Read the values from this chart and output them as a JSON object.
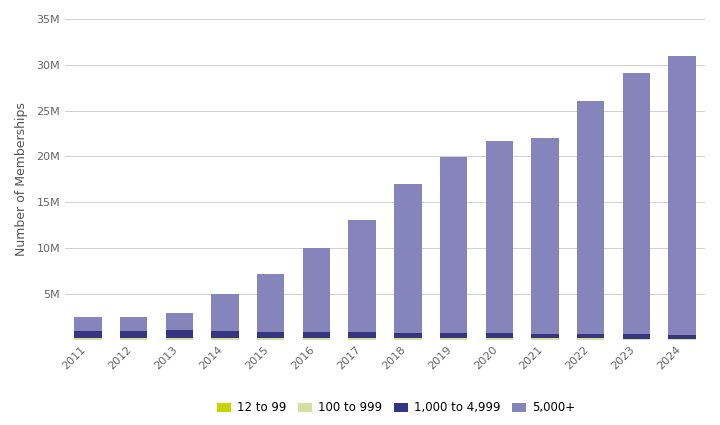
{
  "years": [
    "2011",
    "2012",
    "2013",
    "2014",
    "2015",
    "2016",
    "2017",
    "2018",
    "2019",
    "2020",
    "2021",
    "2022",
    "2023",
    "2024"
  ],
  "series": {
    "12 to 99": [
      20000,
      20000,
      20000,
      25000,
      25000,
      25000,
      25000,
      25000,
      25000,
      20000,
      20000,
      20000,
      15000,
      15000
    ],
    "100 to 999": [
      120000,
      120000,
      130000,
      140000,
      150000,
      150000,
      150000,
      150000,
      150000,
      140000,
      130000,
      120000,
      110000,
      100000
    ],
    "1,000 to 4,999": [
      800000,
      850000,
      900000,
      750000,
      700000,
      650000,
      650000,
      600000,
      600000,
      550000,
      500000,
      500000,
      450000,
      400000
    ],
    "5,000+": [
      1550000,
      1530000,
      1850000,
      4085000,
      6350000,
      9200000,
      12200000,
      16250000,
      19200000,
      21000000,
      21350000,
      25380000,
      28500000,
      30500000
    ]
  },
  "colors": {
    "12 to 99": "#c8d400",
    "100 to 999": "#d4e0a0",
    "1,000 to 4,999": "#363680",
    "5,000+": "#8585bb"
  },
  "ylabel": "Number of Memberships",
  "ylim": [
    0,
    35000000
  ],
  "yticks": [
    0,
    5000000,
    10000000,
    15000000,
    20000000,
    25000000,
    30000000,
    35000000
  ],
  "ytick_labels": [
    "",
    "5M",
    "10M",
    "15M",
    "20M",
    "25M",
    "30M",
    "35M"
  ],
  "background_color": "#ffffff",
  "grid_color": "#d0d0d0",
  "bar_width": 0.6
}
